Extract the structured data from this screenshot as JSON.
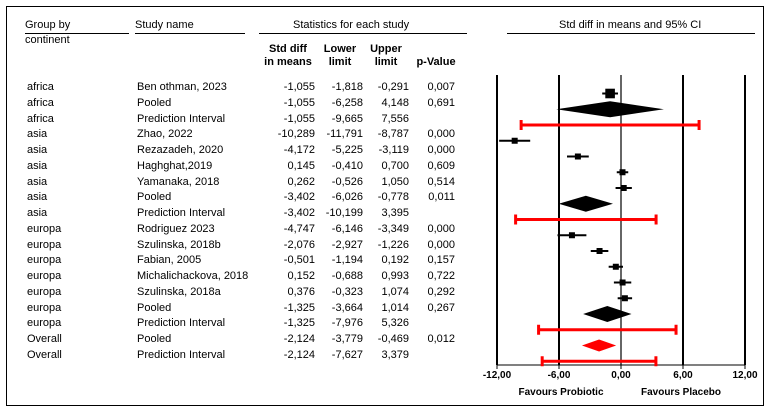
{
  "headers": {
    "group_by": "Group by",
    "continent": "continent",
    "study_name": "Study name",
    "stats_title": "Statistics for each study",
    "ci_title": "Std diff in means and 95% CI",
    "col_std_diff_1": "Std diff",
    "col_std_diff_2": "in means",
    "col_lower_1": "Lower",
    "col_lower_2": "limit",
    "col_upper_1": "Upper",
    "col_upper_2": "limit",
    "col_pvalue": "p-Value"
  },
  "rows": [
    {
      "group": "africa",
      "study": "Ben othman, 2023",
      "sdm": "-1,055",
      "lower": "-1,818",
      "upper": "-0,291",
      "p": "0,007",
      "kind": "study",
      "weight": 1.6
    },
    {
      "group": "africa",
      "study": "Pooled",
      "sdm": "-1,055",
      "lower": "-6,258",
      "upper": "4,148",
      "p": "0,691",
      "kind": "pooled"
    },
    {
      "group": "africa",
      "study": "Prediction Interval",
      "sdm": "-1,055",
      "lower": "-9,665",
      "upper": "7,556",
      "p": "",
      "kind": "prediction"
    },
    {
      "group": "asia",
      "study": "Zhao, 2022",
      "sdm": "-10,289",
      "lower": "-11,791",
      "upper": "-8,787",
      "p": "0,000",
      "kind": "study",
      "weight": 1.0
    },
    {
      "group": "asia",
      "study": "Rezazadeh, 2020",
      "sdm": "-4,172",
      "lower": "-5,225",
      "upper": "-3,119",
      "p": "0,000",
      "kind": "study",
      "weight": 1.0
    },
    {
      "group": "asia",
      "study": "Haghghat,2019",
      "sdm": "0,145",
      "lower": "-0,410",
      "upper": "0,700",
      "p": "0,609",
      "kind": "study",
      "weight": 1.0
    },
    {
      "group": "asia",
      "study": "Yamanaka, 2018",
      "sdm": "0,262",
      "lower": "-0,526",
      "upper": "1,050",
      "p": "0,514",
      "kind": "study",
      "weight": 1.0
    },
    {
      "group": "asia",
      "study": "Pooled",
      "sdm": "-3,402",
      "lower": "-6,026",
      "upper": "-0,778",
      "p": "0,011",
      "kind": "pooled"
    },
    {
      "group": "asia",
      "study": "Prediction Interval",
      "sdm": "-3,402",
      "lower": "-10,199",
      "upper": "3,395",
      "p": "",
      "kind": "prediction"
    },
    {
      "group": "europa",
      "study": "Rodriguez 2023",
      "sdm": "-4,747",
      "lower": "-6,146",
      "upper": "-3,349",
      "p": "0,000",
      "kind": "study",
      "weight": 1.0
    },
    {
      "group": "europa",
      "study": "Szulinska, 2018b",
      "sdm": "-2,076",
      "lower": "-2,927",
      "upper": "-1,226",
      "p": "0,000",
      "kind": "study",
      "weight": 1.0
    },
    {
      "group": "europa",
      "study": "Fabian, 2005",
      "sdm": "-0,501",
      "lower": "-1,194",
      "upper": "0,192",
      "p": "0,157",
      "kind": "study",
      "weight": 1.0
    },
    {
      "group": "europa",
      "study": "Michalichackova, 2018",
      "sdm": "0,152",
      "lower": "-0,688",
      "upper": "0,993",
      "p": "0,722",
      "kind": "study",
      "weight": 1.0
    },
    {
      "group": "europa",
      "study": "Szulinska, 2018a",
      "sdm": "0,376",
      "lower": "-0,323",
      "upper": "1,074",
      "p": "0,292",
      "kind": "study",
      "weight": 1.0
    },
    {
      "group": "europa",
      "study": "Pooled",
      "sdm": "-1,325",
      "lower": "-3,664",
      "upper": "1,014",
      "p": "0,267",
      "kind": "pooled"
    },
    {
      "group": "europa",
      "study": "Prediction Interval",
      "sdm": "-1,325",
      "lower": "-7,976",
      "upper": "5,326",
      "p": "",
      "kind": "prediction"
    },
    {
      "group": "Overall",
      "study": "Pooled",
      "sdm": "-2,124",
      "lower": "-3,779",
      "upper": "-0,469",
      "p": "0,012",
      "kind": "overall"
    },
    {
      "group": "Overall",
      "study": "Prediction Interval",
      "sdm": "-2,124",
      "lower": "-7,627",
      "upper": "3,379",
      "p": "",
      "kind": "prediction"
    }
  ],
  "chart_data": {
    "type": "forest",
    "title": "Std diff in means and 95% CI",
    "xlim": [
      -12,
      12
    ],
    "ticks": [
      -12,
      -6,
      0,
      6,
      12
    ],
    "tick_labels": [
      "-12,00",
      "-6,00",
      "0,00",
      "6,00",
      "12,00"
    ],
    "footer_left": "Favours Probiotic",
    "footer_right": "Favours Placebo",
    "colors": {
      "study": "#000000",
      "pooled": "#000000",
      "overall": "#ff0000",
      "prediction": "#ff0000"
    }
  }
}
